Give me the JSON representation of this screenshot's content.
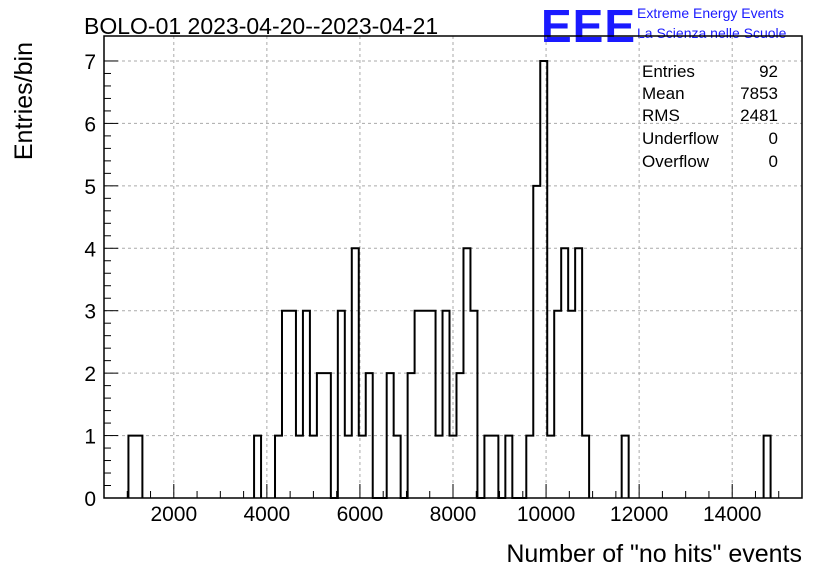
{
  "chart_data": {
    "type": "bar",
    "title": "BOLO-01 2023-04-20--2023-04-21",
    "xlabel": "Number of \"no hits\" events",
    "ylabel": "Entries/bin",
    "xlim": [
      500,
      15500
    ],
    "ylim": [
      0,
      7.4
    ],
    "bin_width": 150,
    "x_ticks": [
      "2000",
      "4000",
      "6000",
      "8000",
      "10000",
      "12000",
      "14000"
    ],
    "x_tick_values": [
      2000,
      4000,
      6000,
      8000,
      10000,
      12000,
      14000
    ],
    "y_ticks": [
      "0",
      "1",
      "2",
      "3",
      "4",
      "5",
      "6",
      "7"
    ],
    "y_tick_values": [
      0,
      1,
      2,
      3,
      4,
      5,
      6,
      7
    ],
    "grid": true,
    "bins": [
      {
        "x": 1100,
        "y": 1
      },
      {
        "x": 1250,
        "y": 1
      },
      {
        "x": 3800,
        "y": 1
      },
      {
        "x": 4250,
        "y": 1
      },
      {
        "x": 4400,
        "y": 3
      },
      {
        "x": 4550,
        "y": 3
      },
      {
        "x": 4700,
        "y": 1
      },
      {
        "x": 4850,
        "y": 3
      },
      {
        "x": 5000,
        "y": 1
      },
      {
        "x": 5150,
        "y": 2
      },
      {
        "x": 5300,
        "y": 2
      },
      {
        "x": 5450,
        "y": 0
      },
      {
        "x": 5600,
        "y": 3
      },
      {
        "x": 5750,
        "y": 1
      },
      {
        "x": 5900,
        "y": 4
      },
      {
        "x": 6050,
        "y": 1
      },
      {
        "x": 6200,
        "y": 2
      },
      {
        "x": 6350,
        "y": 0
      },
      {
        "x": 6500,
        "y": 0
      },
      {
        "x": 6650,
        "y": 2
      },
      {
        "x": 6800,
        "y": 1
      },
      {
        "x": 6950,
        "y": 0
      },
      {
        "x": 7100,
        "y": 2
      },
      {
        "x": 7250,
        "y": 3
      },
      {
        "x": 7400,
        "y": 3
      },
      {
        "x": 7550,
        "y": 3
      },
      {
        "x": 7700,
        "y": 1
      },
      {
        "x": 7850,
        "y": 3
      },
      {
        "x": 8000,
        "y": 1
      },
      {
        "x": 8150,
        "y": 2
      },
      {
        "x": 8300,
        "y": 4
      },
      {
        "x": 8450,
        "y": 3
      },
      {
        "x": 8600,
        "y": 0
      },
      {
        "x": 8750,
        "y": 1
      },
      {
        "x": 8900,
        "y": 1
      },
      {
        "x": 9050,
        "y": 0
      },
      {
        "x": 9200,
        "y": 1
      },
      {
        "x": 9350,
        "y": 0
      },
      {
        "x": 9500,
        "y": 0
      },
      {
        "x": 9650,
        "y": 1
      },
      {
        "x": 9800,
        "y": 5
      },
      {
        "x": 9950,
        "y": 7
      },
      {
        "x": 10100,
        "y": 1
      },
      {
        "x": 10250,
        "y": 3
      },
      {
        "x": 10400,
        "y": 4
      },
      {
        "x": 10550,
        "y": 3
      },
      {
        "x": 10700,
        "y": 4
      },
      {
        "x": 10850,
        "y": 1
      },
      {
        "x": 11700,
        "y": 1
      },
      {
        "x": 14750,
        "y": 1
      }
    ]
  },
  "stats": [
    {
      "label": "Entries",
      "value": "92"
    },
    {
      "label": "Mean",
      "value": "7853"
    },
    {
      "label": "RMS",
      "value": "2481"
    },
    {
      "label": "Underflow",
      "value": "0"
    },
    {
      "label": "Overflow",
      "value": "0"
    }
  ],
  "logo": {
    "mark": "EEE",
    "line1": "Extreme Energy Events",
    "line2": "La Scienza nelle Scuole",
    "color": "#1a1aff"
  }
}
